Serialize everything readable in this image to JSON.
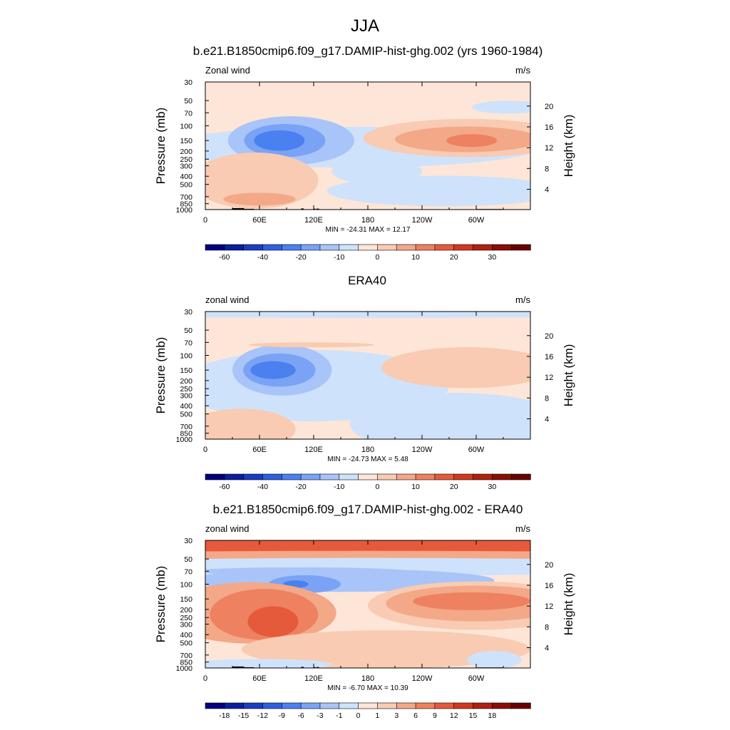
{
  "figure_title": "JJA",
  "chart_data": [
    {
      "type": "contour",
      "title": "b.e21.B1850cmip6.f09_g17.DAMIP-hist-ghg.002 (yrs 1960-1984)",
      "left_label": "Zonal wind",
      "right_label": "m/s",
      "ylabel": "Pressure (mb)",
      "y2label": "Height (km)",
      "x_ticks": [
        "0",
        "60E",
        "120E",
        "180",
        "120W",
        "60W"
      ],
      "x_range_deg": [
        0,
        360
      ],
      "pressure_ticks": [
        "30",
        "50",
        "70",
        "100",
        "150",
        "200",
        "250",
        "300",
        "400",
        "500",
        "700",
        "850",
        "1000"
      ],
      "height_ticks": [
        "20",
        "16",
        "12",
        "8",
        "4"
      ],
      "stats": "MIN = -24.31  MAX =  12.17",
      "colorbar_labels": [
        "-60",
        "-40",
        "-20",
        "-10",
        "0",
        "10",
        "20",
        "30"
      ],
      "colorbar_levels": [
        -70,
        -60,
        -50,
        -40,
        -30,
        -20,
        -15,
        -10,
        -5,
        0,
        5,
        10,
        15,
        20,
        25,
        30,
        35
      ],
      "min": -24.31,
      "max": 12.17,
      "features": [
        {
          "lon": 85,
          "p": 150,
          "value": -24,
          "desc": "easterly jet core"
        },
        {
          "lon": 300,
          "p": 150,
          "value": 12,
          "desc": "westerly maximum"
        }
      ],
      "topography": true
    },
    {
      "type": "contour",
      "title": "ERA40",
      "left_label": "zonal wind",
      "right_label": "m/s",
      "ylabel": "Pressure (mb)",
      "y2label": "Height (km)",
      "x_ticks": [
        "0",
        "60E",
        "120E",
        "180",
        "120W",
        "60W"
      ],
      "x_range_deg": [
        0,
        360
      ],
      "pressure_ticks": [
        "30",
        "50",
        "70",
        "100",
        "150",
        "200",
        "250",
        "300",
        "400",
        "500",
        "700",
        "850",
        "1000"
      ],
      "height_ticks": [
        "20",
        "16",
        "12",
        "8",
        "4"
      ],
      "stats": "MIN = -24.73  MAX =   5.48",
      "colorbar_labels": [
        "-60",
        "-40",
        "-20",
        "-10",
        "0",
        "10",
        "20",
        "30"
      ],
      "colorbar_levels": [
        -70,
        -60,
        -50,
        -40,
        -30,
        -20,
        -15,
        -10,
        -5,
        0,
        5,
        10,
        15,
        20,
        25,
        30,
        35
      ],
      "min": -24.73,
      "max": 5.48,
      "features": [
        {
          "lon": 80,
          "p": 150,
          "value": -24,
          "desc": "easterly jet core"
        },
        {
          "lon": 280,
          "p": 130,
          "value": 5,
          "desc": "weak westerlies"
        }
      ],
      "topography": false
    },
    {
      "type": "contour",
      "title": "b.e21.B1850cmip6.f09_g17.DAMIP-hist-ghg.002 - ERA40",
      "left_label": "zonal wind",
      "right_label": "m/s",
      "ylabel": "Pressure (mb)",
      "y2label": "Height (km)",
      "x_ticks": [
        "0",
        "60E",
        "120E",
        "180",
        "120W",
        "60W"
      ],
      "x_range_deg": [
        0,
        360
      ],
      "pressure_ticks": [
        "30",
        "50",
        "70",
        "100",
        "150",
        "200",
        "250",
        "300",
        "400",
        "500",
        "700",
        "850",
        "1000"
      ],
      "height_ticks": [
        "20",
        "16",
        "12",
        "8",
        "4"
      ],
      "stats": "MIN =  -6.70  MAX =  10.39",
      "colorbar_labels": [
        "-18",
        "-15",
        "-12",
        "-9",
        "-6",
        "-3",
        "-1",
        "0",
        "1",
        "3",
        "6",
        "9",
        "12",
        "15",
        "18"
      ],
      "colorbar_levels": [
        -21,
        -18,
        -15,
        -12,
        -9,
        -6,
        -3,
        -1,
        0,
        1,
        3,
        6,
        9,
        12,
        15,
        18,
        21
      ],
      "min": -6.7,
      "max": 10.39,
      "features": [
        {
          "lon": 100,
          "p": 100,
          "value": -6,
          "desc": "negative band near tropopause"
        },
        {
          "lon": 70,
          "p": 250,
          "value": 9,
          "desc": "positive anomaly"
        },
        {
          "lon": 300,
          "p": 180,
          "value": 7,
          "desc": "positive anomaly"
        }
      ],
      "topography": true
    }
  ],
  "colors": {
    "colorbar": [
      "#00007f",
      "#0a1e9e",
      "#1a3dc0",
      "#2f5fe0",
      "#4a80f0",
      "#7aa3f5",
      "#a8c4f8",
      "#cfe2fb",
      "#fde6d7",
      "#f8cbb2",
      "#f3a888",
      "#ed8160",
      "#e55a3a",
      "#d13820",
      "#b02010",
      "#8a0e06",
      "#6a0000"
    ],
    "topography": "#000000"
  }
}
